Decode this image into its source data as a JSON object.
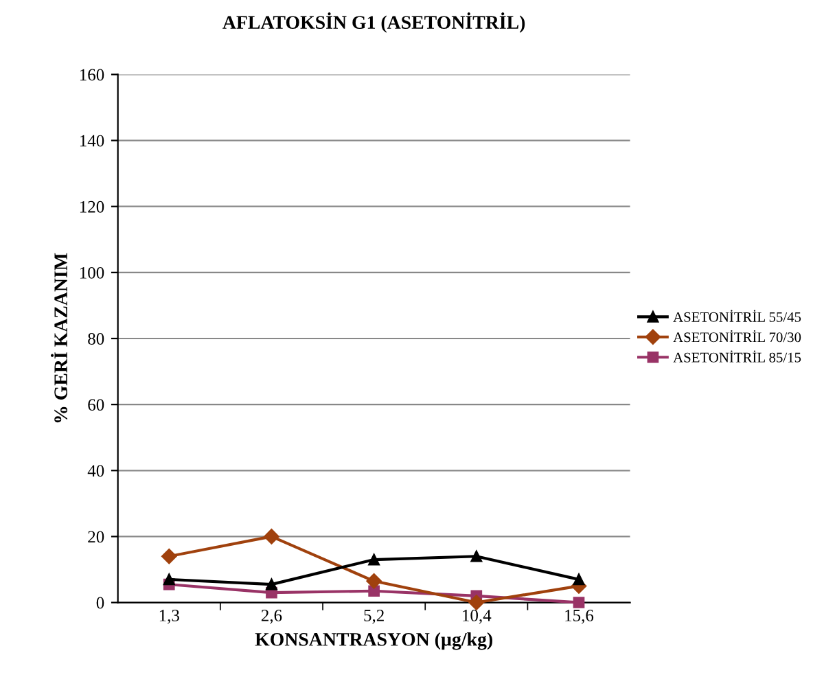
{
  "chart_data": {
    "type": "line",
    "title": "AFLATOKSİN G1 (ASETONİTRİL)",
    "xlabel": "KONSANTRASYON (µg/kg)",
    "ylabel": "% GERİ KAZANIM",
    "categories": [
      "1,3",
      "2,6",
      "5,2",
      "10,4",
      "15,6"
    ],
    "series": [
      {
        "name": "ASETONİTRİL 55/45",
        "color": "#000000",
        "marker": "triangle",
        "values": [
          7,
          5.5,
          13,
          14,
          7
        ]
      },
      {
        "name": "ASETONİTRİL 70/30",
        "color": "#a0410d",
        "marker": "diamond",
        "values": [
          14,
          20,
          6.5,
          0,
          5
        ]
      },
      {
        "name": "ASETONİTRİL 85/15",
        "color": "#993366",
        "marker": "square",
        "values": [
          5.5,
          3,
          3.5,
          2,
          0
        ]
      }
    ],
    "ylim": [
      0,
      160
    ],
    "yticks": [
      0,
      20,
      40,
      60,
      80,
      100,
      120,
      140,
      160
    ],
    "grid": "y",
    "legend": "right"
  }
}
